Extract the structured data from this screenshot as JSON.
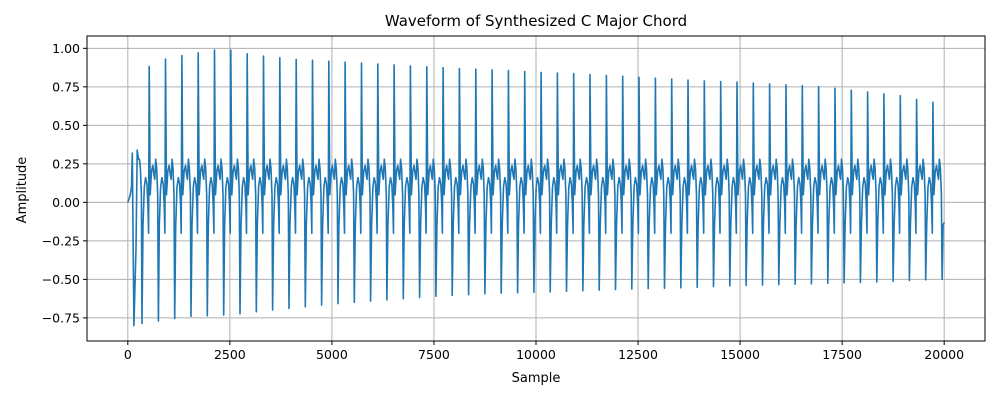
{
  "chart_data": {
    "type": "line",
    "title": "Waveform of Synthesized C Major Chord",
    "xlabel": "Sample",
    "ylabel": "Amplitude",
    "xlim": [
      -1000,
      21000
    ],
    "ylim": [
      -0.9,
      1.08
    ],
    "xticks": [
      0,
      2500,
      5000,
      7500,
      10000,
      12500,
      15000,
      17500,
      20000
    ],
    "xtick_labels": [
      "0",
      "2500",
      "5000",
      "7500",
      "10000",
      "12500",
      "15000",
      "17500",
      "20000"
    ],
    "yticks": [
      -0.75,
      -0.5,
      -0.25,
      0.0,
      0.25,
      0.5,
      0.75,
      1.0
    ],
    "ytick_labels": [
      "−0.75",
      "−0.50",
      "−0.25",
      "0.00",
      "0.25",
      "0.50",
      "0.75",
      "1.00"
    ],
    "grid": true,
    "series": [
      {
        "color": "#1f77b4",
        "x_start": 0,
        "x_end": 20000,
        "period_samples": 400,
        "cycle_count": 50,
        "peak_envelope": [
          [
            0,
            0.33
          ],
          [
            500,
            0.88
          ],
          [
            1000,
            0.94
          ],
          [
            1500,
            0.96
          ],
          [
            2100,
            0.99
          ],
          [
            2500,
            0.99
          ],
          [
            3000,
            0.96
          ],
          [
            4000,
            0.93
          ],
          [
            5000,
            0.915
          ],
          [
            6000,
            0.9
          ],
          [
            7000,
            0.885
          ],
          [
            8000,
            0.87
          ],
          [
            9000,
            0.86
          ],
          [
            10000,
            0.845
          ],
          [
            11000,
            0.835
          ],
          [
            12000,
            0.82
          ],
          [
            13000,
            0.805
          ],
          [
            14000,
            0.79
          ],
          [
            15000,
            0.78
          ],
          [
            16000,
            0.765
          ],
          [
            17000,
            0.75
          ],
          [
            18000,
            0.72
          ],
          [
            19000,
            0.69
          ],
          [
            19600,
            0.65
          ]
        ],
        "trough_envelope": [
          [
            0,
            -0.8
          ],
          [
            500,
            -0.78
          ],
          [
            1000,
            -0.76
          ],
          [
            1500,
            -0.74
          ],
          [
            2500,
            -0.73
          ],
          [
            3500,
            -0.7
          ],
          [
            5000,
            -0.66
          ],
          [
            6500,
            -0.63
          ],
          [
            7500,
            -0.61
          ],
          [
            9000,
            -0.59
          ],
          [
            10500,
            -0.58
          ],
          [
            12000,
            -0.565
          ],
          [
            13500,
            -0.555
          ],
          [
            15000,
            -0.54
          ],
          [
            16500,
            -0.53
          ],
          [
            18000,
            -0.52
          ],
          [
            19800,
            -0.5
          ]
        ],
        "end_value": -0.13
      }
    ]
  }
}
